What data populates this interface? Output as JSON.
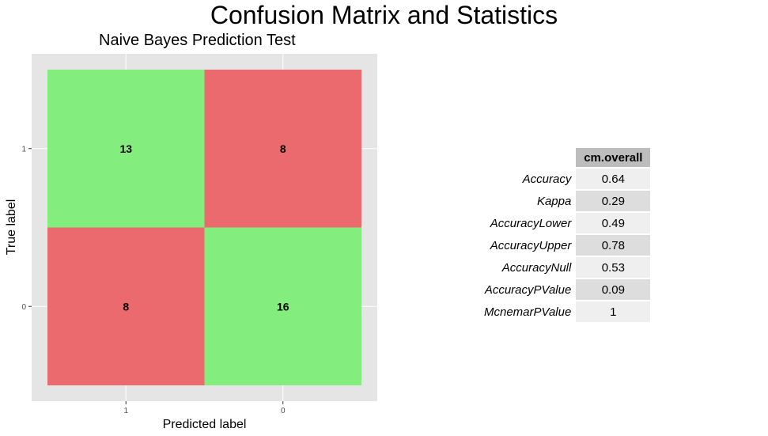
{
  "page": {
    "main_title": "Confusion Matrix and Statistics"
  },
  "chart_data": {
    "type": "heatmap",
    "title": "Naive Bayes Prediction Test",
    "xlabel": "Predicted label",
    "ylabel": "True label",
    "x_categories": [
      "1",
      "0"
    ],
    "y_categories": [
      "1",
      "0"
    ],
    "cells": [
      {
        "true": "1",
        "predicted": "1",
        "value": 13,
        "correct": true
      },
      {
        "true": "1",
        "predicted": "0",
        "value": 8,
        "correct": false
      },
      {
        "true": "0",
        "predicted": "1",
        "value": 8,
        "correct": false
      },
      {
        "true": "0",
        "predicted": "0",
        "value": 16,
        "correct": true
      }
    ],
    "colors": {
      "correct": "#83ed7d",
      "incorrect": "#ea6a6d",
      "panel": "#e5e5e5",
      "grid": "#ffffff"
    }
  },
  "stats_table": {
    "column_header": "cm.overall",
    "rows": [
      {
        "label": "Accuracy",
        "value": "0.64"
      },
      {
        "label": "Kappa",
        "value": "0.29"
      },
      {
        "label": "AccuracyLower",
        "value": "0.49"
      },
      {
        "label": "AccuracyUpper",
        "value": "0.78"
      },
      {
        "label": "AccuracyNull",
        "value": "0.53"
      },
      {
        "label": "AccuracyPValue",
        "value": "0.09"
      },
      {
        "label": "McnemarPValue",
        "value": "1"
      }
    ]
  }
}
